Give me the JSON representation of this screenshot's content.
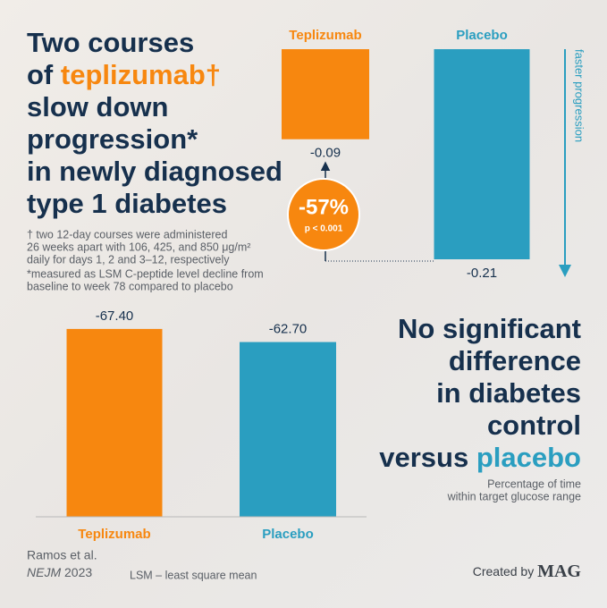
{
  "title": [
    [
      {
        "text": "Two courses"
      }
    ],
    [
      {
        "text": "of "
      },
      {
        "text": "teplizumab†",
        "highlight": true
      }
    ],
    [
      {
        "text": "slow down"
      }
    ],
    [
      {
        "text": "progression*"
      }
    ],
    [
      {
        "text": "in newly diagnosed"
      }
    ],
    [
      {
        "text": "type 1 diabetes"
      }
    ]
  ],
  "footnotes": [
    [
      "† two 12-day courses were administered",
      "26 weeks apart with 106, 425, and 850 μg/m²",
      "daily for days 1, 2 and 3–12, respectively"
    ],
    [
      "*measured as LSM C-peptide level decline from",
      "baseline to week 78 compared to placebo"
    ]
  ],
  "source": {
    "authors": "Ramos et al.",
    "journal": "NEJM",
    "year": "2023"
  },
  "abbreviation": "LSM – least square mean",
  "credit": {
    "text": "Created by",
    "brand": "MAG"
  },
  "chart_data": [
    {
      "type": "bar",
      "categories": [
        "Teplizumab",
        "Placebo"
      ],
      "values": [
        -0.09,
        -0.21
      ],
      "colors": [
        "#f7870f",
        "#2a9ec0"
      ],
      "ylim": [
        0,
        -0.21
      ],
      "annotation": "-57%",
      "annotation_sub": "p < 0.001",
      "axis_label": "faster progression"
    },
    {
      "type": "bar",
      "title": [
        [
          {
            "text": "No significant"
          }
        ],
        [
          {
            "text": "difference"
          }
        ],
        [
          {
            "text": "in diabetes"
          }
        ],
        [
          {
            "text": "control"
          }
        ],
        [
          {
            "text": "versus "
          },
          {
            "text": "placebo",
            "highlight": true
          }
        ]
      ],
      "subtitle": [
        "Percentage of time",
        "within target glucose range"
      ],
      "categories": [
        "Teplizumab",
        "Placebo"
      ],
      "values": [
        -67.4,
        -62.7
      ],
      "value_labels": [
        "-67.40",
        "-62.70"
      ],
      "colors": [
        "#f7870f",
        "#2a9ec0"
      ],
      "ylim": [
        0,
        -72.5
      ]
    }
  ]
}
